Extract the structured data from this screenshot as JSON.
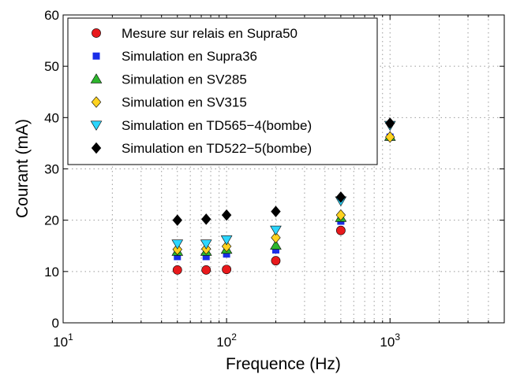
{
  "chart_data": {
    "type": "scatter",
    "title": "",
    "xlabel": "Frequence (Hz)",
    "ylabel": "Courant (mA)",
    "xscale": "log",
    "xlim": [
      10,
      5000
    ],
    "ylim": [
      0,
      60
    ],
    "x_ticks": [
      {
        "value": 10,
        "base": "10",
        "exp": "1"
      },
      {
        "value": 100,
        "base": "10",
        "exp": "2"
      },
      {
        "value": 1000,
        "base": "10",
        "exp": "3"
      }
    ],
    "y_ticks": [
      {
        "value": 0,
        "label": "0"
      },
      {
        "value": 10,
        "label": "10"
      },
      {
        "value": 20,
        "label": "20"
      },
      {
        "value": 30,
        "label": "30"
      },
      {
        "value": 40,
        "label": "40"
      },
      {
        "value": 50,
        "label": "50"
      },
      {
        "value": 60,
        "label": "60"
      }
    ],
    "grid": true,
    "legend_position": "top-left",
    "x": [
      50,
      75,
      100,
      200,
      500,
      1000
    ],
    "series": [
      {
        "name": "Mesure sur relais en Supra50",
        "marker": "circle",
        "color": "#e8191c",
        "values": [
          10.3,
          10.3,
          10.4,
          12.1,
          18.0,
          null
        ]
      },
      {
        "name": "Simulation en Supra36",
        "marker": "square",
        "color": "#1a2ee8",
        "values": [
          12.9,
          12.9,
          13.4,
          14.2,
          19.8,
          36.2
        ]
      },
      {
        "name": "Simulation en SV285",
        "marker": "triangle-up",
        "color": "#2db52d",
        "values": [
          13.9,
          13.9,
          14.3,
          15.1,
          20.5,
          36.3
        ]
      },
      {
        "name": "Simulation en SV315",
        "marker": "diamond",
        "color": "#ffd21f",
        "values": [
          14.3,
          14.4,
          14.9,
          16.6,
          21.0,
          36.2
        ]
      },
      {
        "name": "Simulation en TD565−4(bombe)",
        "marker": "triangle-down",
        "color": "#2cd6ff",
        "values": [
          15.4,
          15.4,
          16.2,
          18.1,
          23.8,
          38.5
        ]
      },
      {
        "name": "Simulation en TD522−5(bombe)",
        "marker": "diamond",
        "color": "#000000",
        "values": [
          20.0,
          20.2,
          21.0,
          21.7,
          24.5,
          38.9
        ]
      }
    ]
  }
}
